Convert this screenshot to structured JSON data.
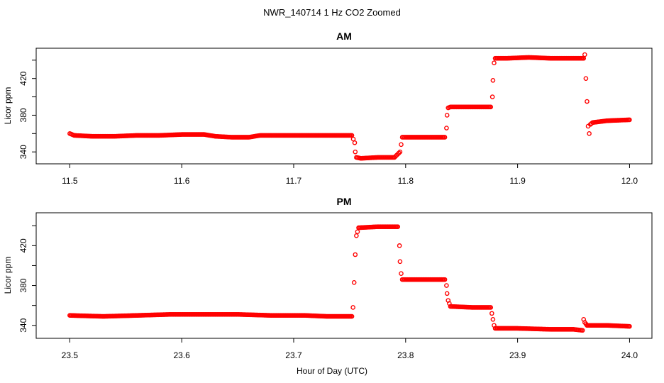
{
  "figure": {
    "title": "NWR_140714  1 Hz CO2 Zoomed",
    "xlabel": "Hour of Day (UTC)"
  },
  "colors": {
    "points": "#ff0000",
    "axes": "#000000",
    "background": "#ffffff"
  },
  "chart_data": [
    {
      "type": "scatter",
      "title": "AM",
      "xlabel": "",
      "ylabel": "Licor ppm",
      "xlim": [
        11.47,
        12.02
      ],
      "ylim": [
        327,
        453
      ],
      "xticks": [
        11.5,
        11.6,
        11.7,
        11.8,
        11.9,
        12.0
      ],
      "xtick_labels": [
        "11.5",
        "11.6",
        "11.7",
        "11.8",
        "11.9",
        "12.0"
      ],
      "yticks": [
        340,
        360,
        380,
        400,
        420,
        440
      ],
      "ytick_labels": [
        "340",
        "",
        "380",
        "",
        "420",
        ""
      ],
      "grid": false,
      "marker": "open-circle",
      "series": [
        {
          "x": [
            11.5,
            11.504,
            11.52,
            11.54,
            11.56,
            11.58,
            11.6,
            11.62,
            11.63,
            11.645,
            11.66,
            11.67,
            11.69,
            11.71,
            11.73,
            11.752,
            11.7545,
            11.755,
            11.756,
            11.76,
            11.775,
            11.79,
            11.795,
            11.796,
            11.797,
            11.8,
            11.82,
            11.835,
            11.8365,
            11.837,
            11.838,
            11.84,
            11.86,
            11.876,
            11.8775,
            11.878,
            11.879,
            11.88,
            11.89,
            11.91,
            11.93,
            11.95,
            11.959,
            11.96,
            11.961,
            11.962,
            11.963,
            11.964,
            11.965,
            11.967,
            11.98,
            12.0
          ],
          "y": [
            360,
            358,
            357,
            357,
            358,
            358,
            359,
            359,
            357,
            356,
            356,
            358,
            358,
            358,
            358,
            358,
            350,
            340,
            334,
            333,
            334,
            334,
            340,
            348,
            356,
            356,
            356,
            356,
            366,
            380,
            388,
            389,
            389,
            389,
            400,
            418,
            437,
            442,
            442,
            443,
            442,
            442,
            442,
            446,
            420,
            395,
            368,
            360,
            370,
            372,
            374,
            375
          ]
        }
      ]
    },
    {
      "type": "scatter",
      "title": "PM",
      "xlabel": "",
      "ylabel": "Licor ppm",
      "xlim": [
        23.47,
        24.02
      ],
      "ylim": [
        327,
        453
      ],
      "xticks": [
        23.5,
        23.6,
        23.7,
        23.8,
        23.9,
        24.0
      ],
      "xtick_labels": [
        "23.5",
        "23.6",
        "23.7",
        "23.8",
        "23.9",
        "24.0"
      ],
      "yticks": [
        340,
        360,
        380,
        400,
        420,
        440
      ],
      "ytick_labels": [
        "340",
        "",
        "380",
        "",
        "420",
        ""
      ],
      "grid": false,
      "marker": "open-circle",
      "series": [
        {
          "x": [
            23.5,
            23.53,
            23.56,
            23.59,
            23.62,
            23.65,
            23.68,
            23.71,
            23.73,
            23.752,
            23.753,
            23.754,
            23.755,
            23.756,
            23.758,
            23.775,
            23.793,
            23.7945,
            23.795,
            23.796,
            23.797,
            23.8,
            23.82,
            23.835,
            23.8365,
            23.837,
            23.838,
            23.84,
            23.86,
            23.876,
            23.877,
            23.878,
            23.879,
            23.88,
            23.9,
            23.93,
            23.95,
            23.958,
            23.959,
            23.96,
            23.962,
            23.98,
            24.0
          ],
          "y": [
            350,
            349,
            350,
            351,
            351,
            351,
            350,
            350,
            349,
            349,
            358,
            383,
            411,
            430,
            438,
            439,
            439,
            420,
            404,
            392,
            386,
            386,
            386,
            386,
            380,
            372,
            365,
            359,
            358,
            358,
            352,
            346,
            340,
            337,
            337,
            336,
            336,
            335,
            346,
            343,
            340,
            340,
            339
          ]
        }
      ]
    }
  ]
}
